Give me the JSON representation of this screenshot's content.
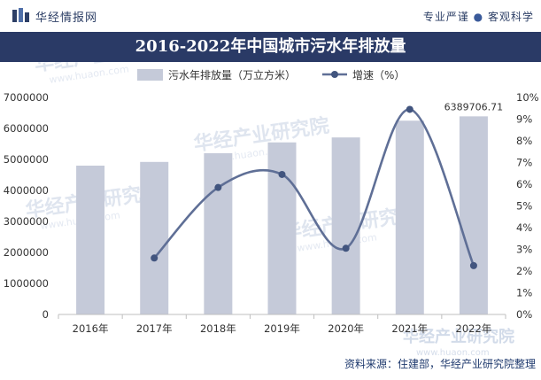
{
  "header": {
    "brand": "华经情报网",
    "slogan_left": "专业严谨",
    "slogan_sep": "●",
    "slogan_right": "客观科学"
  },
  "watermark": {
    "name": "华经产业研究院",
    "url": "www.huaon.com"
  },
  "colors": {
    "title_bg": "#2a3a66",
    "bar": "#c5cad9",
    "line": "#5f6f96",
    "marker": "#42557f"
  },
  "chart_data": {
    "type": "bar",
    "title": "2016-2022年中国城市污水年排放量",
    "categories": [
      "2016年",
      "2017年",
      "2018年",
      "2019年",
      "2020年",
      "2021年",
      "2022年"
    ],
    "series": [
      {
        "name": "污水年排放量（万立方米）",
        "type": "bar",
        "axis": "left",
        "values": [
          4800000,
          4920000,
          5200000,
          5550000,
          5710000,
          6250000,
          6389706.71
        ]
      },
      {
        "name": "增速（%）",
        "type": "line",
        "axis": "right",
        "smooth": true,
        "values": [
          null,
          2.6,
          5.85,
          6.45,
          3.05,
          9.45,
          2.25
        ]
      }
    ],
    "data_labels": [
      {
        "series": 0,
        "index": 6,
        "text": "6389706.71"
      }
    ],
    "y_left": {
      "range": [
        0,
        7000000
      ],
      "ticks": [
        "0",
        "1000000",
        "2000000",
        "3000000",
        "4000000",
        "5000000",
        "6000000",
        "7000000"
      ]
    },
    "y_right": {
      "range": [
        0,
        10
      ],
      "ticks": [
        "0%",
        "1%",
        "2%",
        "3%",
        "4%",
        "5%",
        "6%",
        "7%",
        "8%",
        "9%",
        "10%"
      ]
    },
    "legend_position": "top",
    "grid": false
  },
  "source": "资料来源：住建部，华经产业研究院整理"
}
